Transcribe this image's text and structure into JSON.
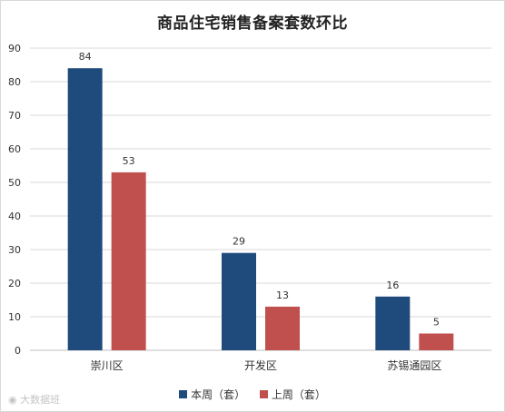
{
  "chart_data": {
    "type": "bar",
    "title": "商品住宅销售备案套数环比",
    "categories": [
      "崇川区",
      "开发区",
      "苏锡通园区"
    ],
    "series": [
      {
        "name": "本周（套）",
        "values": [
          84,
          29,
          16
        ],
        "color": "#1f4a7c"
      },
      {
        "name": "上周（套）",
        "values": [
          53,
          13,
          5
        ],
        "color": "#c0504d"
      }
    ],
    "ylim": [
      0,
      90
    ],
    "yticks": [
      0,
      10,
      20,
      30,
      40,
      50,
      60,
      70,
      80,
      90
    ],
    "grid": true,
    "legend_position": "bottom"
  },
  "watermark": {
    "text": "大数据班",
    "icon": "weibo-logo-icon"
  }
}
